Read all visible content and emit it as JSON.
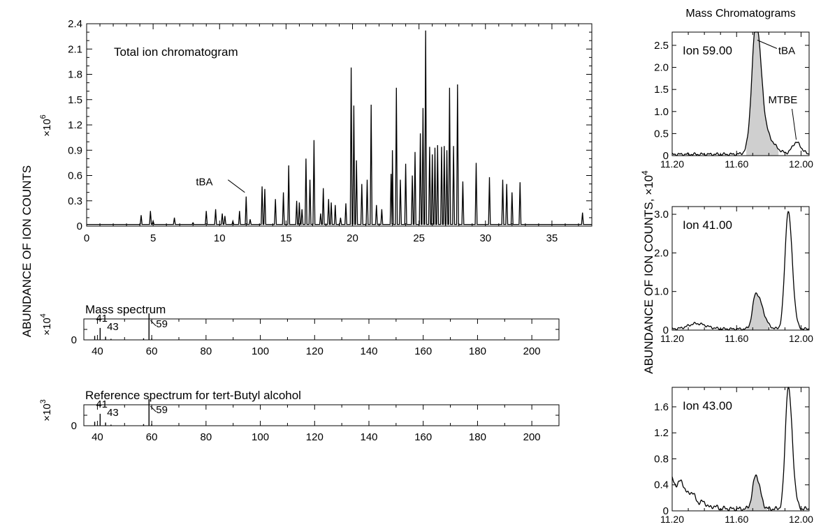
{
  "figure": {
    "left_ylabel": "ABUNDANCE OF ION COUNTS",
    "right_ylabel": "ABUNDANCE OF ION COUNTS, ×10",
    "right_ylabel_exp": "4",
    "right_title": "Mass Chromatograms"
  },
  "chart_data": [
    {
      "type": "line",
      "id": "tic",
      "title": "Total ion chromatogram",
      "multiplier_base": "×10",
      "multiplier_exp": "6",
      "xlim": [
        0,
        38
      ],
      "ylim": [
        0,
        2.4
      ],
      "xticks": [
        0,
        5,
        10,
        15,
        20,
        25,
        30,
        35
      ],
      "xtick_labels": [
        "0",
        "5",
        "10",
        "15",
        "20",
        "25",
        "30",
        "35"
      ],
      "yticks": [
        0,
        0.3,
        0.6,
        0.9,
        1.2,
        1.5,
        1.8,
        2.1,
        2.4
      ],
      "ytick_labels": [
        "0",
        "0.3",
        "0.6",
        "0.9",
        "1.2",
        "1.5",
        "1.8",
        "2.1",
        "2.4"
      ],
      "baseline": 0.02,
      "peaks": [
        [
          4.1,
          0.13
        ],
        [
          4.8,
          0.18
        ],
        [
          5.0,
          0.06
        ],
        [
          6.6,
          0.1
        ],
        [
          8.0,
          0.04
        ],
        [
          9.0,
          0.18
        ],
        [
          9.7,
          0.2
        ],
        [
          10.2,
          0.15
        ],
        [
          10.4,
          0.12
        ],
        [
          11.0,
          0.06
        ],
        [
          11.5,
          0.18
        ],
        [
          12.0,
          0.35
        ],
        [
          12.3,
          0.08
        ],
        [
          13.2,
          0.47
        ],
        [
          13.4,
          0.44
        ],
        [
          14.2,
          0.32
        ],
        [
          14.8,
          0.4
        ],
        [
          15.2,
          0.72
        ],
        [
          15.8,
          0.3
        ],
        [
          16.0,
          0.28
        ],
        [
          16.2,
          0.2
        ],
        [
          16.5,
          0.8
        ],
        [
          16.8,
          0.55
        ],
        [
          17.1,
          1.02
        ],
        [
          17.6,
          0.15
        ],
        [
          17.8,
          0.45
        ],
        [
          18.2,
          0.32
        ],
        [
          18.4,
          0.28
        ],
        [
          18.7,
          0.25
        ],
        [
          19.1,
          0.1
        ],
        [
          19.5,
          0.27
        ],
        [
          19.9,
          1.88
        ],
        [
          20.1,
          1.43
        ],
        [
          20.3,
          0.78
        ],
        [
          20.7,
          0.5
        ],
        [
          21.1,
          0.55
        ],
        [
          21.4,
          1.44
        ],
        [
          21.8,
          0.25
        ],
        [
          22.2,
          0.2
        ],
        [
          22.9,
          0.62
        ],
        [
          23.0,
          0.9
        ],
        [
          23.3,
          1.64
        ],
        [
          23.6,
          0.55
        ],
        [
          24.0,
          0.74
        ],
        [
          24.5,
          0.6
        ],
        [
          24.7,
          0.88
        ],
        [
          25.1,
          1.1
        ],
        [
          25.3,
          1.4
        ],
        [
          25.5,
          2.32
        ],
        [
          25.8,
          0.94
        ],
        [
          26.0,
          0.85
        ],
        [
          26.2,
          0.93
        ],
        [
          26.4,
          0.96
        ],
        [
          26.7,
          0.94
        ],
        [
          26.9,
          0.95
        ],
        [
          27.1,
          0.9
        ],
        [
          27.3,
          1.64
        ],
        [
          27.6,
          0.95
        ],
        [
          27.9,
          1.68
        ],
        [
          28.3,
          0.53
        ],
        [
          29.3,
          0.75
        ],
        [
          30.3,
          0.58
        ],
        [
          31.3,
          0.55
        ],
        [
          31.6,
          0.5
        ],
        [
          32.0,
          0.4
        ],
        [
          32.6,
          0.52
        ],
        [
          37.3,
          0.16
        ]
      ],
      "annotations": [
        {
          "text": "tBA",
          "x": 12.0,
          "y": 0.35
        }
      ]
    },
    {
      "type": "bar",
      "id": "ms",
      "title": "Mass spectrum",
      "multiplier_base": "×10",
      "multiplier_exp": "4",
      "xlim": [
        35,
        210
      ],
      "xticks": [
        40,
        60,
        80,
        100,
        120,
        140,
        160,
        180,
        200
      ],
      "xtick_labels": [
        "40",
        "60",
        "80",
        "100",
        "120",
        "140",
        "160",
        "180",
        "200"
      ],
      "ylim": [
        0,
        1
      ],
      "ytick_labels": [
        "0"
      ],
      "mz": [
        39,
        41,
        43,
        45,
        57,
        59,
        60
      ],
      "intensity": [
        0.15,
        0.45,
        0.12,
        0.04,
        0.06,
        1.0,
        0.06
      ],
      "peak_labels": [
        {
          "mz": 41,
          "text": "41"
        },
        {
          "mz": 43,
          "text": "43"
        },
        {
          "mz": 59,
          "text": "59"
        }
      ]
    },
    {
      "type": "bar",
      "id": "ref",
      "title": "Reference spectrum for tert-Butyl alcohol",
      "multiplier_base": "×10",
      "multiplier_exp": "3",
      "xlim": [
        35,
        210
      ],
      "xticks": [
        40,
        60,
        80,
        100,
        120,
        140,
        160,
        180,
        200
      ],
      "xtick_labels": [
        "40",
        "60",
        "80",
        "100",
        "120",
        "140",
        "160",
        "180",
        "200"
      ],
      "ylim": [
        0,
        1
      ],
      "ytick_labels": [
        "0"
      ],
      "mz": [
        39,
        41,
        43,
        45,
        57,
        59,
        60
      ],
      "intensity": [
        0.15,
        0.45,
        0.12,
        0.04,
        0.06,
        1.0,
        0.06
      ],
      "peak_labels": [
        {
          "mz": 41,
          "text": "41"
        },
        {
          "mz": 43,
          "text": "43"
        },
        {
          "mz": 59,
          "text": "59"
        }
      ]
    },
    {
      "type": "area",
      "id": "ion59",
      "title": "Ion 59.00",
      "xlim": [
        11.2,
        12.05
      ],
      "ylim": [
        0,
        2.8
      ],
      "xticks": [
        11.2,
        11.6,
        12.0
      ],
      "xtick_labels": [
        "11.20",
        "11.60",
        "12.00"
      ],
      "yticks": [
        0,
        0.5,
        1.0,
        1.5,
        2.0,
        2.5
      ],
      "ytick_labels": [
        "0",
        "0.5",
        "1.0",
        "1.5",
        "2.0",
        "2.5"
      ],
      "baseline": 0.03,
      "shade_range": [
        11.66,
        11.86
      ],
      "peaks": [
        {
          "c": 11.72,
          "h": 2.65,
          "w1": 0.025,
          "w2": 0.03
        },
        {
          "c": 11.76,
          "h": 0.5,
          "w1": 0.05,
          "w2": 0.06
        },
        {
          "c": 11.97,
          "h": 0.27,
          "w1": 0.025,
          "w2": 0.03
        }
      ],
      "annotations": [
        {
          "text": "tBA",
          "x": 11.72,
          "y": 2.65
        },
        {
          "text": "MTBE",
          "x": 11.97,
          "y": 0.3
        }
      ]
    },
    {
      "type": "area",
      "id": "ion41",
      "title": "Ion 41.00",
      "xlim": [
        11.2,
        12.05
      ],
      "ylim": [
        0,
        3.2
      ],
      "xticks": [
        11.2,
        11.6,
        12.0
      ],
      "xtick_labels": [
        "11.20",
        "11.60",
        "12.00"
      ],
      "yticks": [
        0,
        1.0,
        2.0,
        3.0
      ],
      "ytick_labels": [
        "0",
        "1.0",
        "2.0",
        "3.0"
      ],
      "baseline": 0.03,
      "shade_range": [
        11.66,
        11.8
      ],
      "peaks": [
        {
          "c": 11.35,
          "h": 0.14,
          "w1": 0.05,
          "w2": 0.06
        },
        {
          "c": 11.72,
          "h": 0.93,
          "w1": 0.02,
          "w2": 0.04
        },
        {
          "c": 11.92,
          "h": 3.05,
          "w1": 0.02,
          "w2": 0.025
        }
      ],
      "annotations": []
    },
    {
      "type": "area",
      "id": "ion43",
      "title": "Ion 43.00",
      "xlim": [
        11.2,
        12.05
      ],
      "ylim": [
        0,
        1.9
      ],
      "xticks": [
        11.2,
        11.6,
        12.0
      ],
      "xtick_labels": [
        "11.20",
        "11.60",
        "12.00"
      ],
      "yticks": [
        0,
        0.4,
        0.8,
        1.2,
        1.6
      ],
      "ytick_labels": [
        "0",
        "0.4",
        "0.8",
        "1.2",
        "1.6"
      ],
      "baseline": 0.03,
      "shade_range": [
        11.66,
        11.79
      ],
      "peaks": [
        {
          "c": 11.2,
          "h": 0.38,
          "w1": 0.1,
          "w2": 0.1
        },
        {
          "c": 11.72,
          "h": 0.52,
          "w1": 0.02,
          "w2": 0.025
        },
        {
          "c": 11.92,
          "h": 1.88,
          "w1": 0.018,
          "w2": 0.025
        }
      ],
      "annotations": []
    }
  ]
}
